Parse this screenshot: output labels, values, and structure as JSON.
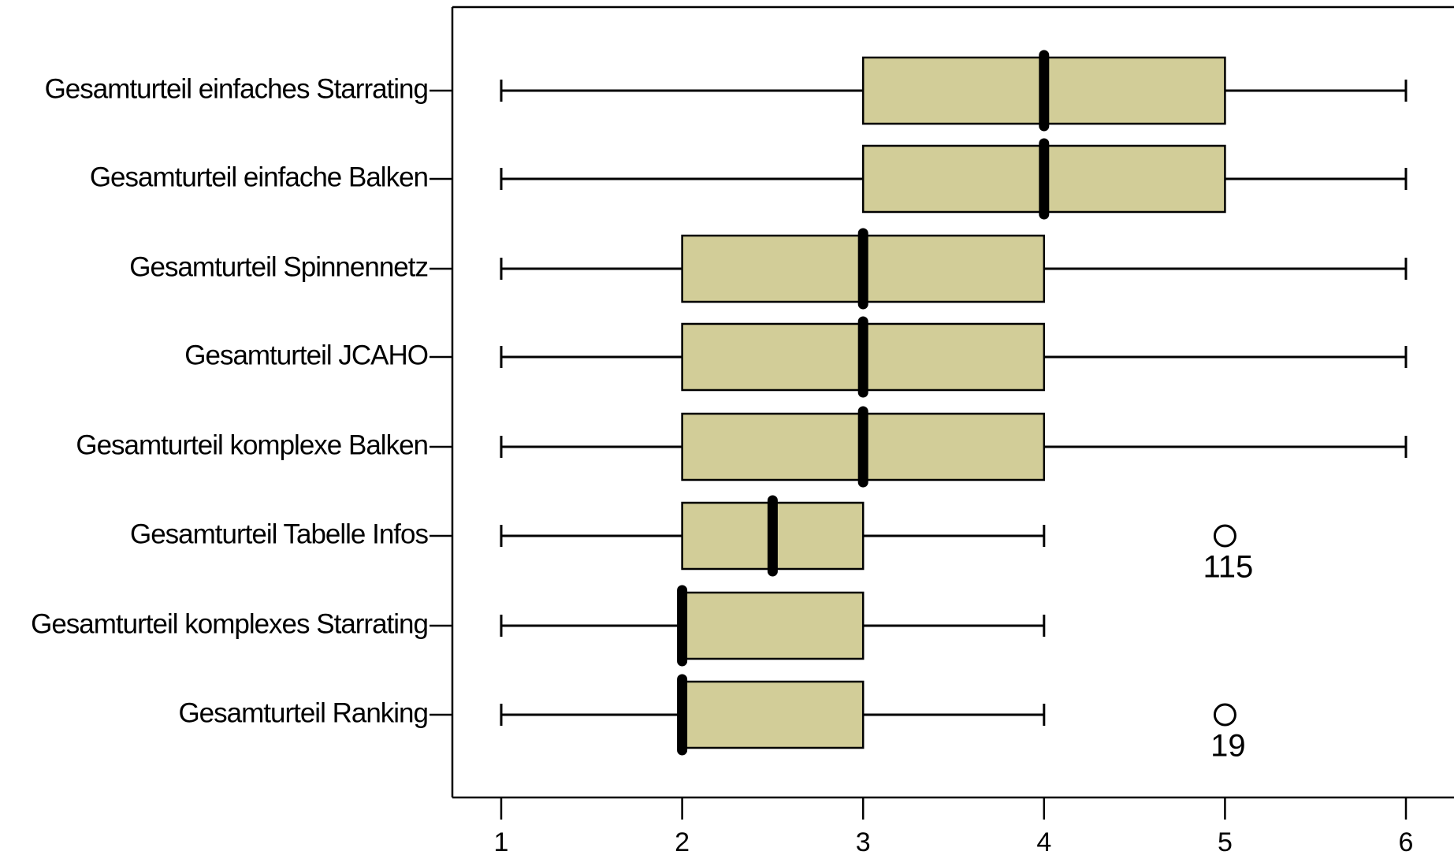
{
  "chart_data": {
    "type": "boxplot",
    "orientation": "horizontal",
    "color": "#d2cd98",
    "categories": [
      "Gesamturteil einfaches Starrating",
      "Gesamturteil einfache Balken",
      "Gesamturteil Spinnennetz",
      "Gesamturteil JCAHO",
      "Gesamturteil komplexe Balken",
      "Gesamturteil Tabelle Infos",
      "Gesamturteil komplexes Starrating",
      "Gesamturteil Ranking"
    ],
    "boxes": [
      {
        "whislo": 1,
        "q1": 3,
        "med": 4,
        "q3": 5,
        "whishi": 6,
        "outliers": [],
        "outlier_labels": []
      },
      {
        "whislo": 1,
        "q1": 3,
        "med": 4,
        "q3": 5,
        "whishi": 6,
        "outliers": [],
        "outlier_labels": []
      },
      {
        "whislo": 1,
        "q1": 2,
        "med": 3,
        "q3": 4,
        "whishi": 6,
        "outliers": [],
        "outlier_labels": []
      },
      {
        "whislo": 1,
        "q1": 2,
        "med": 3,
        "q3": 4,
        "whishi": 6,
        "outliers": [],
        "outlier_labels": []
      },
      {
        "whislo": 1,
        "q1": 2,
        "med": 3,
        "q3": 4,
        "whishi": 6,
        "outliers": [],
        "outlier_labels": []
      },
      {
        "whislo": 1,
        "q1": 2,
        "med": 2.5,
        "q3": 3,
        "whishi": 4,
        "outliers": [
          5
        ],
        "outlier_labels": [
          "115"
        ]
      },
      {
        "whislo": 1,
        "q1": 2,
        "med": 2,
        "q3": 3,
        "whishi": 4,
        "outliers": [],
        "outlier_labels": []
      },
      {
        "whislo": 1,
        "q1": 2,
        "med": 2,
        "q3": 3,
        "whishi": 4,
        "outliers": [
          5
        ],
        "outlier_labels": [
          "19"
        ]
      }
    ],
    "xlim": [
      0.73,
      6.27
    ],
    "xticks": [
      1,
      2,
      3,
      4,
      5,
      6
    ]
  }
}
